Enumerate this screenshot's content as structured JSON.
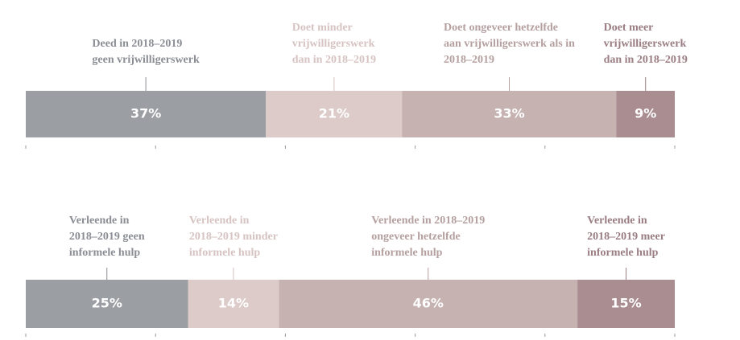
{
  "chart_data": [
    {
      "type": "bar",
      "orientation": "horizontal",
      "stacked": true,
      "xlim": [
        0,
        100
      ],
      "xticks": [
        0,
        20,
        40,
        60,
        80,
        100
      ],
      "series": [
        {
          "name": [
            "Deed in 2018–2019",
            "geen vrijwilligerswerk"
          ],
          "color": "#9b9ea3",
          "label_color": "#8a8d93",
          "values": [
            37
          ],
          "value_labels": [
            "37%"
          ]
        },
        {
          "name": [
            "Doet minder",
            "vrijwilligerswerk",
            "dan in 2018–2019"
          ],
          "color": "#dccbc9",
          "label_color": "#d6c3c2",
          "values": [
            21
          ],
          "value_labels": [
            "21%"
          ]
        },
        {
          "name": [
            "Doet ongeveer hetzelfde",
            "aan vrijwilligerswerk als in",
            "2018–2019"
          ],
          "color": "#c5b2b1",
          "label_color": "#b59f9f",
          "values": [
            33
          ],
          "value_labels": [
            "33%"
          ]
        },
        {
          "name": [
            "Doet meer",
            "vrijwilligerswerk",
            "dan in 2018–2019"
          ],
          "color": "#a98d91",
          "label_color": "#9a7d82",
          "values": [
            9
          ],
          "value_labels": [
            "9%"
          ]
        }
      ]
    },
    {
      "type": "bar",
      "orientation": "horizontal",
      "stacked": true,
      "xlim": [
        0,
        100
      ],
      "xticks": [
        0,
        20,
        40,
        60,
        80,
        100
      ],
      "series": [
        {
          "name": [
            "Verleende in",
            "2018–2019 geen",
            "informele hulp"
          ],
          "color": "#9b9ea3",
          "label_color": "#8a8d93",
          "values": [
            25
          ],
          "value_labels": [
            "25%"
          ]
        },
        {
          "name": [
            "Verleende in",
            "2018–2019 minder",
            "informele hulp"
          ],
          "color": "#dccbc9",
          "label_color": "#d6c3c2",
          "values": [
            14
          ],
          "value_labels": [
            "14%"
          ]
        },
        {
          "name": [
            "Verleende in 2018–2019",
            "ongeveer hetzelfde",
            "informele hulp"
          ],
          "color": "#c5b2b1",
          "label_color": "#b59f9f",
          "values": [
            46
          ],
          "value_labels": [
            "46%"
          ]
        },
        {
          "name": [
            "Verleende in",
            "2018–2019 meer",
            "informele hulp"
          ],
          "color": "#a98d91",
          "label_color": "#9a7d82",
          "values": [
            15
          ],
          "value_labels": [
            "15%"
          ]
        }
      ]
    }
  ]
}
